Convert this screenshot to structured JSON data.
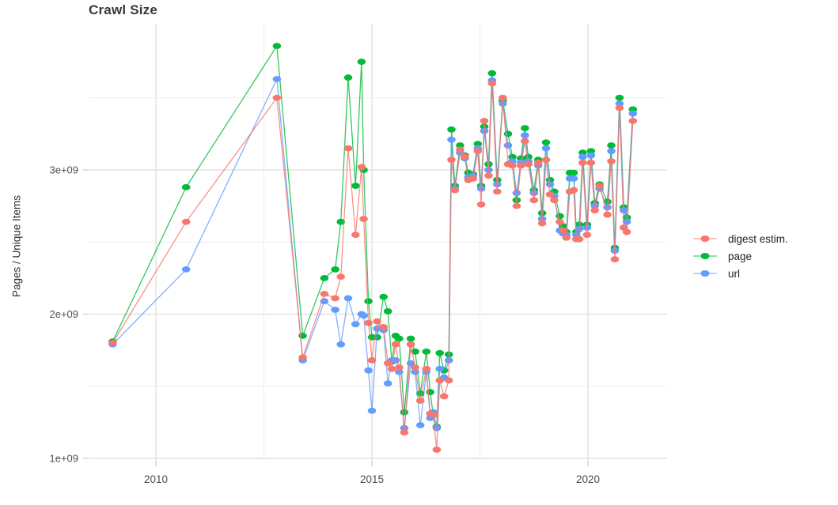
{
  "title": "Crawl Size",
  "axes": {
    "y_label": "Pages / Unique Items",
    "x_tick_labels": [
      "2010",
      "2015",
      "2020"
    ],
    "y_tick_labels": [
      "1e+09",
      "2e+09",
      "3e+09"
    ]
  },
  "legend": {
    "position": "right",
    "items": [
      {
        "label": "digest estim.",
        "color": "#F8766D"
      },
      {
        "label": "page",
        "color": "#00BA38"
      },
      {
        "label": "url",
        "color": "#619CFF"
      }
    ]
  },
  "chart_data": {
    "type": "line",
    "title": "Crawl Size",
    "xlabel": "",
    "ylabel": "Pages / Unique Items",
    "y_unit": "pages or unique items (values given in billions, 1e9)",
    "x_unit": "decimal year of crawl",
    "grid": true,
    "legend_position": "right",
    "x_range": [
      2008.4,
      2021.8
    ],
    "y_range_billions": [
      0.92,
      4.0
    ],
    "x_major_ticks": [
      2010,
      2015,
      2020
    ],
    "x_minor_gridlines": [
      2012.5,
      2017.5
    ],
    "y_major_ticks_billions": [
      1,
      2,
      3
    ],
    "y_minor_gridlines_billions": [
      1.5,
      2.5,
      3.5
    ],
    "x": [
      2009.0,
      2010.7,
      2012.8,
      2013.4,
      2013.9,
      2014.15,
      2014.28,
      2014.45,
      2014.62,
      2014.76,
      2014.81,
      2014.92,
      2015.0,
      2015.12,
      2015.27,
      2015.37,
      2015.46,
      2015.55,
      2015.63,
      2015.75,
      2015.9,
      2016.0,
      2016.12,
      2016.26,
      2016.35,
      2016.42,
      2016.5,
      2016.57,
      2016.67,
      2016.78,
      2016.84,
      2016.92,
      2017.04,
      2017.15,
      2017.23,
      2017.34,
      2017.45,
      2017.53,
      2017.6,
      2017.7,
      2017.78,
      2017.9,
      2018.03,
      2018.15,
      2018.25,
      2018.35,
      2018.45,
      2018.54,
      2018.62,
      2018.75,
      2018.85,
      2018.94,
      2019.03,
      2019.12,
      2019.22,
      2019.35,
      2019.42,
      2019.5,
      2019.58,
      2019.67,
      2019.73,
      2019.8,
      2019.88,
      2019.98,
      2020.07,
      2020.16,
      2020.27,
      2020.45,
      2020.54,
      2020.62,
      2020.73,
      2020.83,
      2020.9,
      2021.04
    ],
    "series": [
      {
        "name": "digest estim.",
        "color": "#F8766D",
        "values_in_billions": [
          1.8,
          2.64,
          3.5,
          1.7,
          2.14,
          2.11,
          2.26,
          3.15,
          2.55,
          3.02,
          2.66,
          1.94,
          1.68,
          1.95,
          1.91,
          1.66,
          1.62,
          1.79,
          1.63,
          1.18,
          1.79,
          1.63,
          1.4,
          1.62,
          1.31,
          1.3,
          1.06,
          1.54,
          1.43,
          1.54,
          3.07,
          2.86,
          3.14,
          3.09,
          2.93,
          2.94,
          3.13,
          2.76,
          3.34,
          2.96,
          3.6,
          2.85,
          3.5,
          3.04,
          3.03,
          2.75,
          3.03,
          3.2,
          3.04,
          2.79,
          3.05,
          2.63,
          3.07,
          2.83,
          2.79,
          2.64,
          2.58,
          2.53,
          2.85,
          2.86,
          2.52,
          2.52,
          3.05,
          2.55,
          3.05,
          2.72,
          2.89,
          2.69,
          3.06,
          2.38,
          3.43,
          2.6,
          2.57,
          3.34
        ]
      },
      {
        "name": "page",
        "color": "#00BA38",
        "values_in_billions": [
          1.81,
          2.88,
          3.86,
          1.85,
          2.25,
          2.31,
          2.64,
          3.64,
          2.89,
          3.75,
          3.0,
          2.09,
          1.84,
          1.84,
          2.12,
          2.02,
          1.67,
          1.85,
          1.83,
          1.32,
          1.83,
          1.74,
          1.45,
          1.74,
          1.46,
          1.3,
          1.22,
          1.73,
          1.61,
          1.72,
          3.28,
          2.89,
          3.17,
          3.1,
          2.98,
          2.97,
          3.18,
          2.89,
          3.3,
          3.04,
          3.67,
          2.93,
          3.48,
          3.25,
          3.09,
          2.79,
          3.08,
          3.29,
          3.09,
          2.86,
          3.07,
          2.7,
          3.19,
          2.93,
          2.85,
          2.68,
          2.61,
          2.57,
          2.98,
          2.98,
          2.57,
          2.62,
          3.12,
          2.62,
          3.13,
          2.77,
          2.9,
          2.78,
          3.17,
          2.46,
          3.5,
          2.74,
          2.67,
          3.42
        ]
      },
      {
        "name": "url",
        "color": "#619CFF",
        "values_in_billions": [
          1.79,
          2.31,
          3.63,
          1.68,
          2.09,
          2.03,
          1.79,
          2.11,
          1.93,
          2.0,
          1.99,
          1.61,
          1.33,
          1.9,
          1.89,
          1.52,
          1.68,
          1.68,
          1.6,
          1.21,
          1.66,
          1.6,
          1.23,
          1.6,
          1.28,
          1.32,
          1.21,
          1.62,
          1.56,
          1.68,
          3.21,
          2.87,
          3.12,
          3.08,
          2.95,
          2.96,
          3.15,
          2.87,
          3.27,
          3.0,
          3.62,
          2.9,
          3.46,
          3.17,
          3.06,
          2.84,
          3.05,
          3.24,
          3.06,
          2.84,
          3.03,
          2.66,
          3.15,
          2.9,
          2.82,
          2.58,
          2.56,
          2.55,
          2.94,
          2.94,
          2.55,
          2.59,
          3.09,
          2.6,
          3.1,
          2.75,
          2.87,
          2.74,
          3.13,
          2.44,
          3.46,
          2.72,
          2.64,
          3.39
        ]
      }
    ]
  }
}
